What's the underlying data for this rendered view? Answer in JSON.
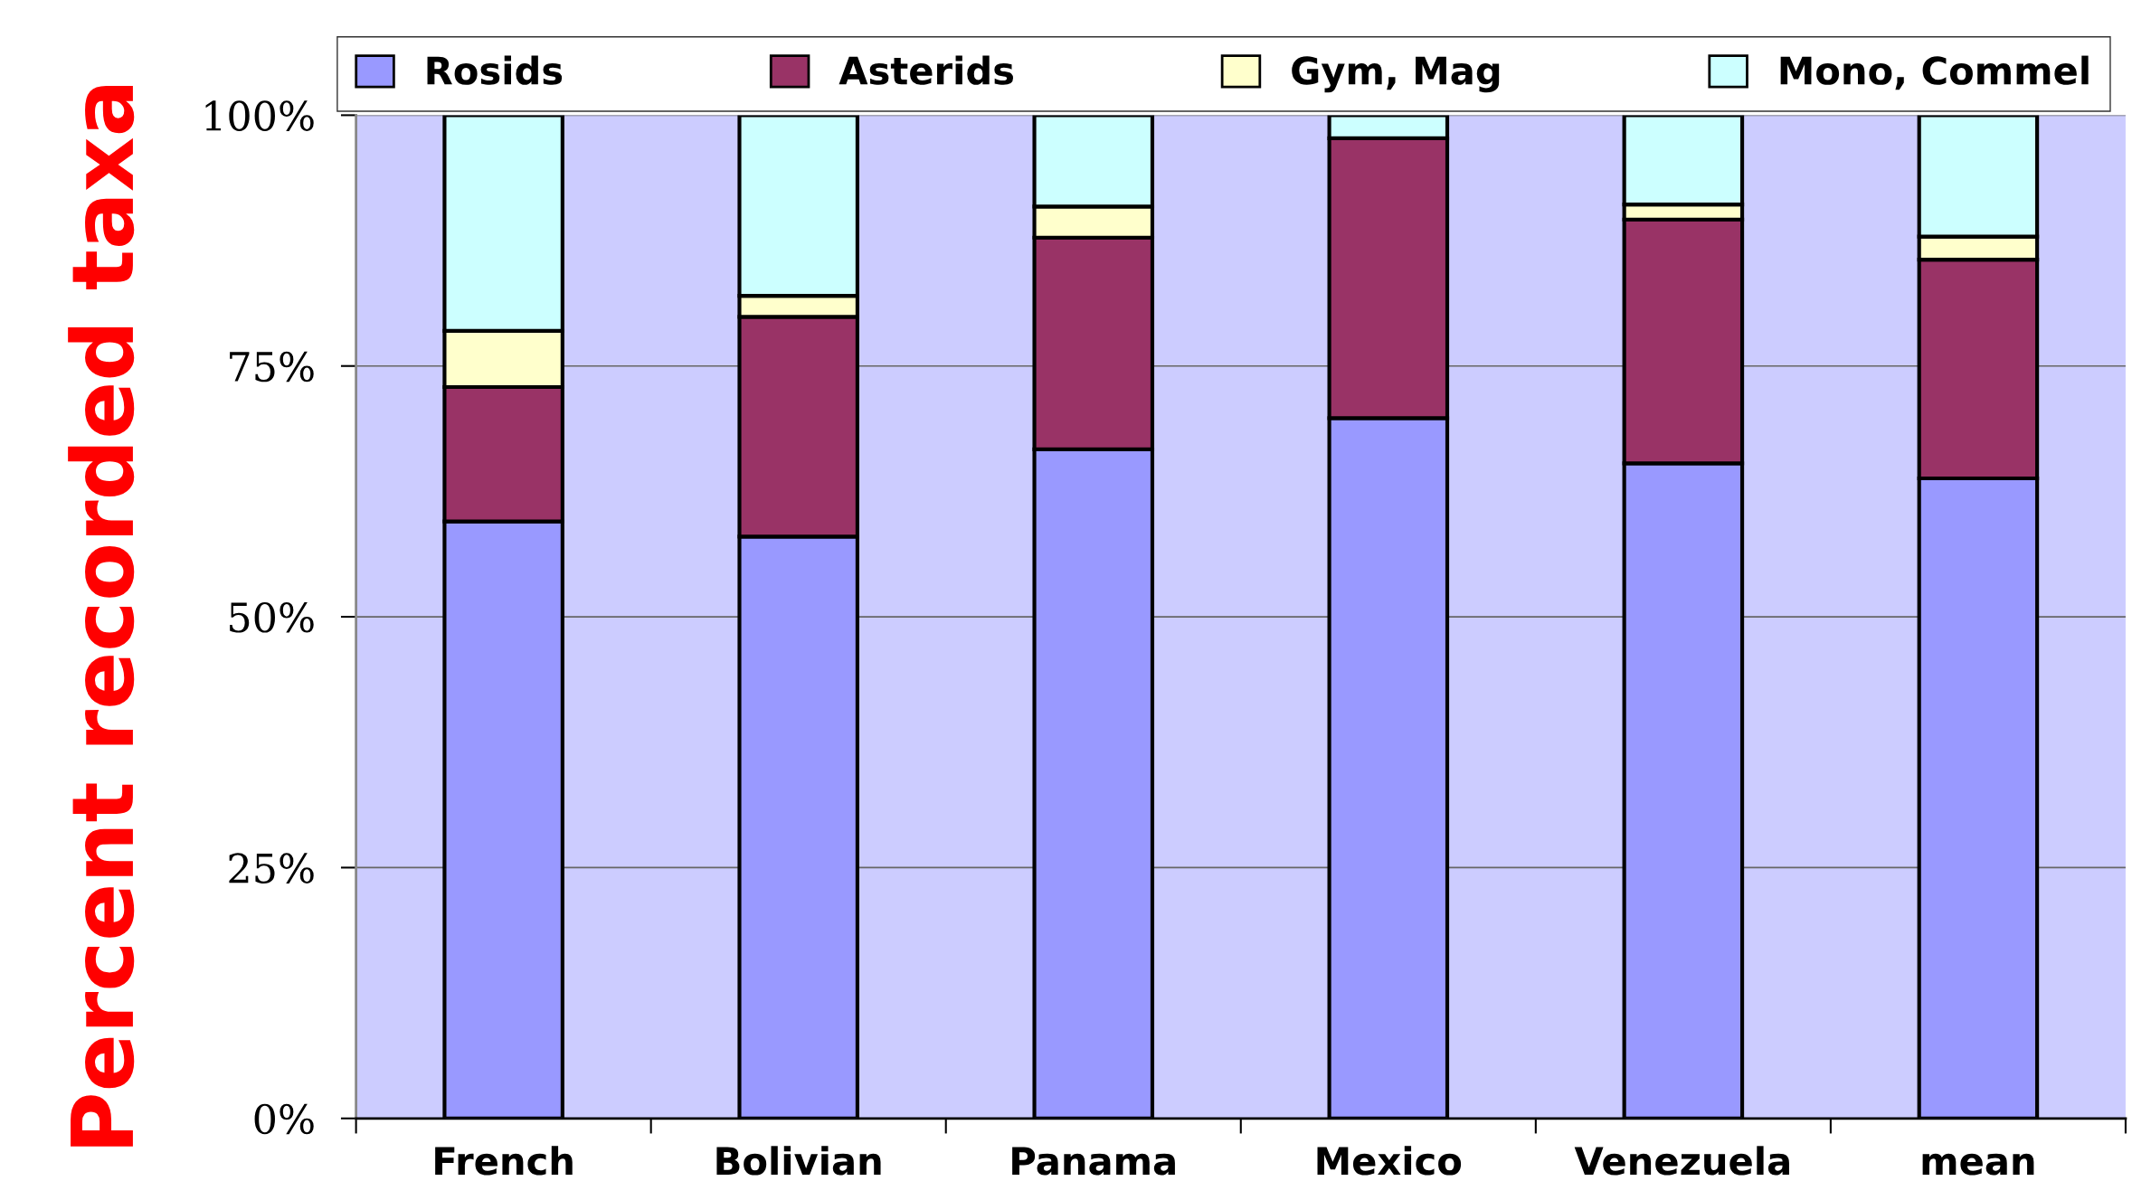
{
  "chart_data": {
    "type": "bar",
    "stacked": true,
    "ylabel": "Percent recorded taxa",
    "categories": [
      "French",
      "Bolivian",
      "Panama",
      "Mexico",
      "Venezuela",
      "mean"
    ],
    "series": [
      {
        "name": "Rosids",
        "color": "#9999ff",
        "values": [
          59.5,
          58.0,
          66.7,
          69.8,
          65.3,
          63.8
        ]
      },
      {
        "name": "Asterids",
        "color": "#993366",
        "values": [
          13.4,
          21.9,
          21.1,
          27.9,
          24.3,
          21.8
        ]
      },
      {
        "name": "Gym, Mag",
        "color": "#ffffcc",
        "values": [
          5.6,
          2.1,
          3.1,
          0,
          1.5,
          2.3
        ]
      },
      {
        "name": "Mono, Commel",
        "color": "#ccffff",
        "values": [
          21.5,
          18.0,
          9.1,
          2.3,
          8.9,
          12.1
        ]
      }
    ],
    "ylim": [
      0,
      100
    ],
    "yticks": [
      {
        "value": 0,
        "label": "0%"
      },
      {
        "value": 25,
        "label": "25%"
      },
      {
        "value": 50,
        "label": "50%"
      },
      {
        "value": 75,
        "label": "75%"
      },
      {
        "value": 100,
        "label": "100%"
      }
    ],
    "grid": "y",
    "legend": "top"
  }
}
